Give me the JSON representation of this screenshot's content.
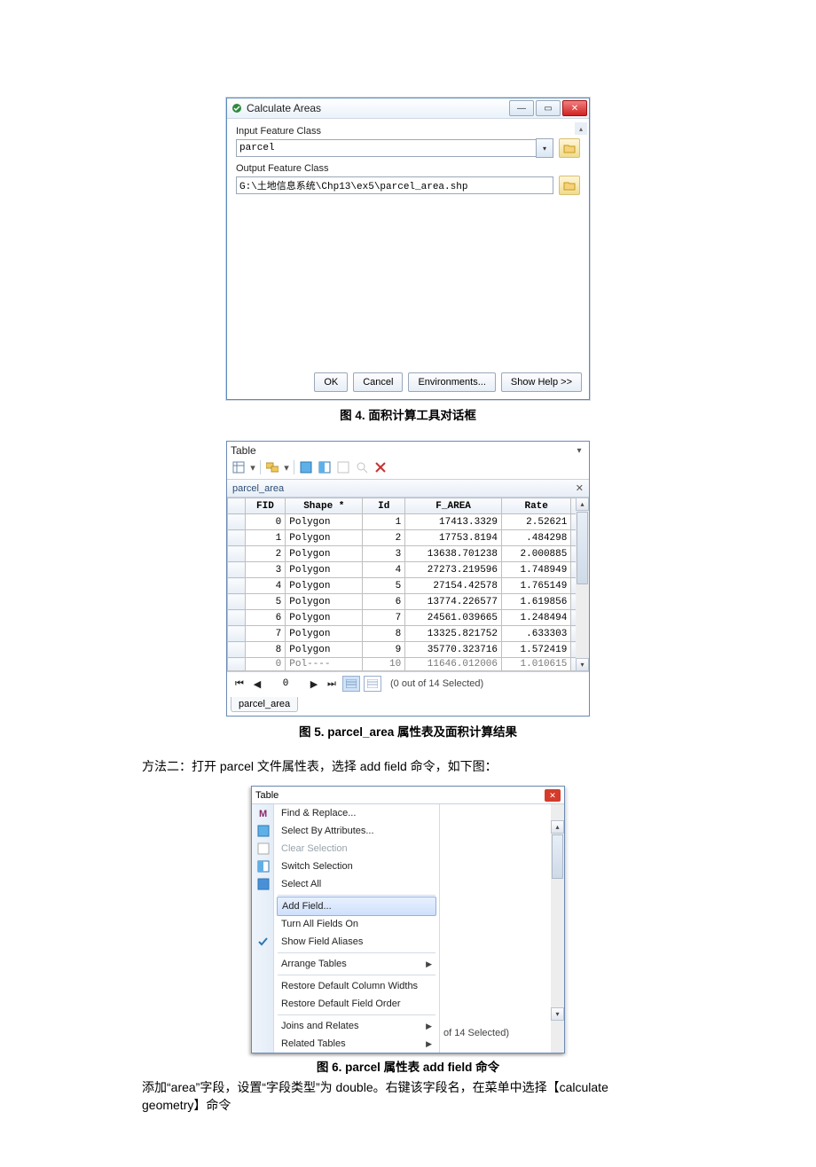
{
  "dialog": {
    "title": "Calculate Areas",
    "input_label": "Input Feature Class",
    "input_value": "parcel",
    "output_label": "Output Feature Class",
    "output_value": "G:\\土地信息系统\\Chp13\\ex5\\parcel_area.shp",
    "buttons": {
      "ok": "OK",
      "cancel": "Cancel",
      "env": "Environments...",
      "help": "Show Help >>"
    }
  },
  "fig4": "图 4.  面积计算工具对话框",
  "tablewin": {
    "title": "Table",
    "subtitle": "parcel_area",
    "headers": {
      "fid": "FID",
      "shape": "Shape *",
      "id": "Id",
      "farea": "F_AREA",
      "rate": "Rate"
    },
    "col_widths": {
      "rowhead": 18,
      "fid": 42,
      "shape": 80,
      "id": 44,
      "farea": 100,
      "rate": 72,
      "tail": 18
    },
    "rows": [
      {
        "fid": "0",
        "shape": "Polygon",
        "id": "1",
        "farea": "17413.3329",
        "rate": "2.52621"
      },
      {
        "fid": "1",
        "shape": "Polygon",
        "id": "2",
        "farea": "17753.8194",
        "rate": ".484298"
      },
      {
        "fid": "2",
        "shape": "Polygon",
        "id": "3",
        "farea": "13638.701238",
        "rate": "2.000885"
      },
      {
        "fid": "3",
        "shape": "Polygon",
        "id": "4",
        "farea": "27273.219596",
        "rate": "1.748949"
      },
      {
        "fid": "4",
        "shape": "Polygon",
        "id": "5",
        "farea": "27154.42578",
        "rate": "1.765149"
      },
      {
        "fid": "5",
        "shape": "Polygon",
        "id": "6",
        "farea": "13774.226577",
        "rate": "1.619856"
      },
      {
        "fid": "6",
        "shape": "Polygon",
        "id": "7",
        "farea": "24561.039665",
        "rate": "1.248494"
      },
      {
        "fid": "7",
        "shape": "Polygon",
        "id": "8",
        "farea": "13325.821752",
        "rate": ".633303"
      },
      {
        "fid": "8",
        "shape": "Polygon",
        "id": "9",
        "farea": "35770.323716",
        "rate": "1.572419"
      }
    ],
    "cutoff": {
      "fid": "0",
      "shape": "Pol----",
      "id": "10",
      "farea": "11646.012006",
      "rate": "1.010615"
    },
    "recnum": "0",
    "status": "(0 out of 14 Selected)",
    "tab": "parcel_area"
  },
  "fig5": "图 5. parcel_area 属性表及面积计算结果",
  "para": "方法二：打开 parcel 文件属性表，选择 add field 命令，如下图：",
  "menu": {
    "title": "Table",
    "items": [
      {
        "label": "Find & Replace...",
        "icon": "find"
      },
      {
        "label": "Select By Attributes...",
        "icon": "select-attr"
      },
      {
        "label": "Clear Selection",
        "icon": "clear",
        "disabled": true
      },
      {
        "label": "Switch Selection",
        "icon": "switch"
      },
      {
        "label": "Select All",
        "icon": "select-all"
      },
      {
        "label": "Add Field...",
        "hl": true
      },
      {
        "label": "Turn All Fields On"
      },
      {
        "label": "Show Field Aliases",
        "icon": "check"
      },
      {
        "label": "Arrange Tables",
        "sub": true
      },
      {
        "label": "Restore Default Column Widths"
      },
      {
        "label": "Restore Default Field Order"
      },
      {
        "label": "Joins and Relates",
        "sub": true
      },
      {
        "label": "Related Tables",
        "sub": true
      }
    ],
    "right_status": "of 14 Selected)"
  },
  "fig6": "图 6. parcel 属性表 add field 命令",
  "para2a": "添加“area”字段，设置“字段类型”为 double。右键该字段名，在菜单中选择【calculate",
  "para2b": "geometry】命令"
}
